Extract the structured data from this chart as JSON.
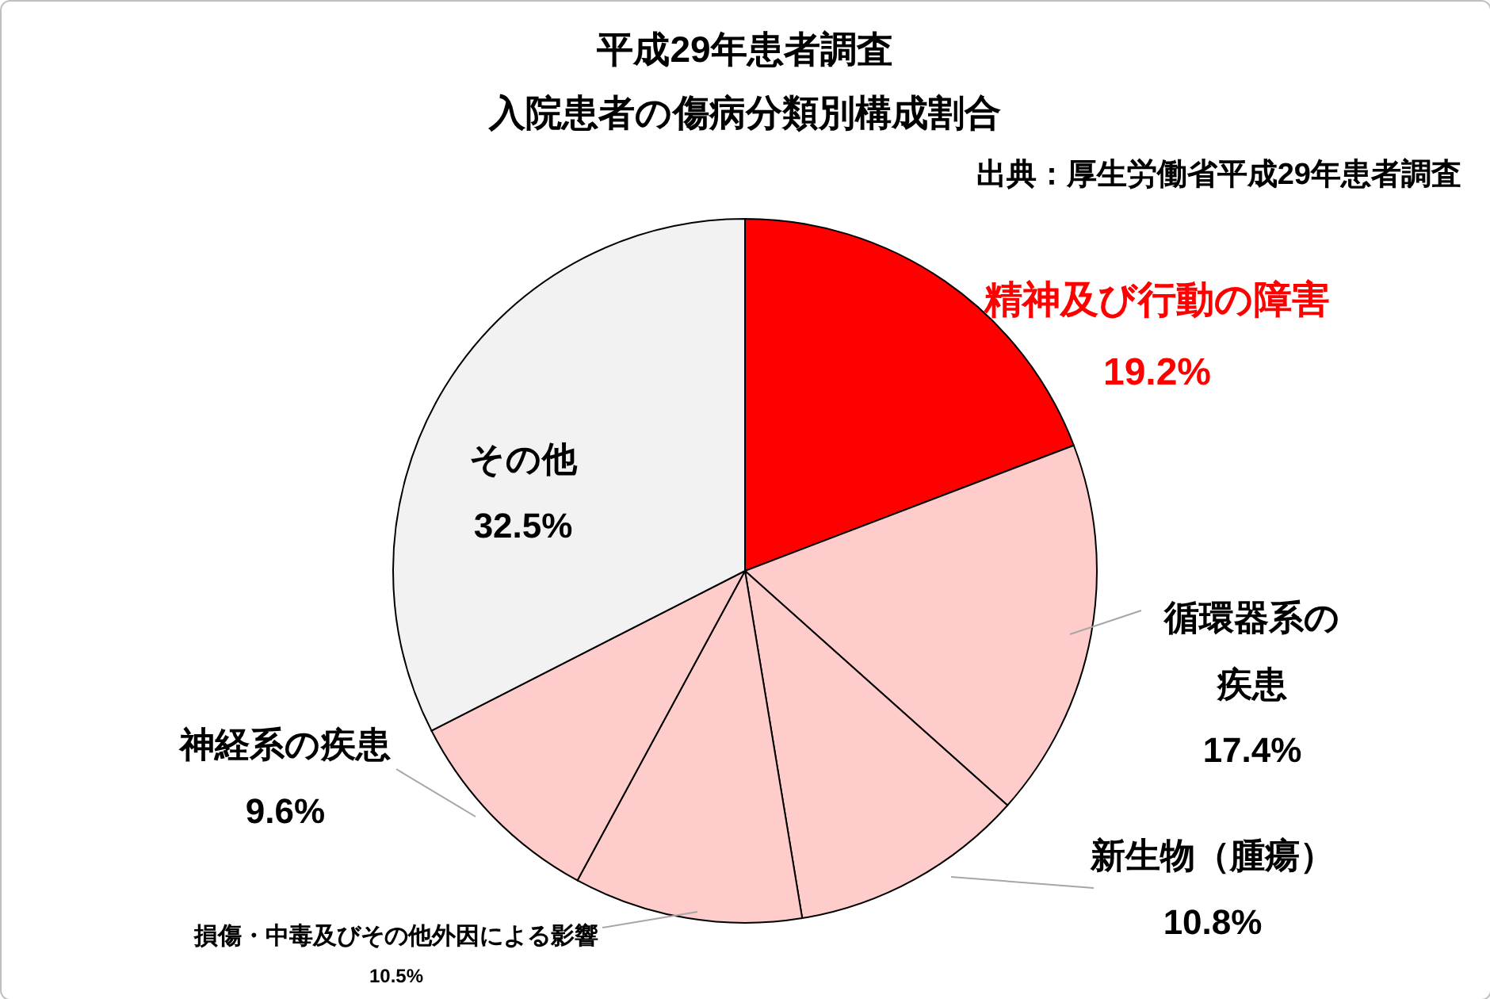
{
  "chart_data": {
    "type": "pie",
    "title": "平成29年患者調査",
    "subtitle": "入院患者の傷病分類別構成割合",
    "annotations": [
      "出典：厚生労働省平成29年患者調査"
    ],
    "categories": [
      "精神及び行動の障害",
      "循環器系の疾患",
      "新生物（腫瘍）",
      "損傷・中毒及びその他外因による影響",
      "神経系の疾患",
      "その他"
    ],
    "values": [
      19.2,
      17.4,
      10.8,
      10.5,
      9.6,
      32.5
    ],
    "colors": [
      "#ff0000",
      "#ffcccc",
      "#ffcccc",
      "#ffcccc",
      "#ffcccc",
      "#f2f2f2"
    ],
    "value_labels": [
      "19.2%",
      "17.4%",
      "10.8%",
      "10.5%",
      "9.6%",
      "32.5%"
    ]
  }
}
